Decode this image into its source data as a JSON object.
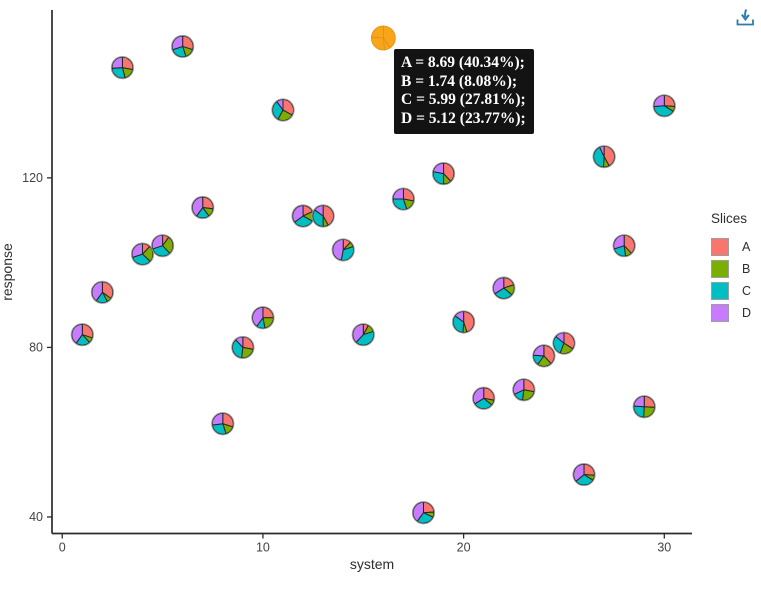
{
  "icons": {
    "download": "download-icon"
  },
  "tooltip": {
    "lines": [
      "A = 8.69 (40.34%);",
      "B = 1.74 (8.08%);",
      "C = 5.99 (27.81%);",
      "D = 5.12 (23.77%);"
    ],
    "point_x": 16
  },
  "chart_data": {
    "type": "scatter-pie",
    "title": "",
    "xlabel": "system",
    "ylabel": "response",
    "x_ticks": [
      0,
      10,
      20,
      30
    ],
    "y_ticks": [
      40,
      80,
      120
    ],
    "xlim": [
      -0.51,
      31.38
    ],
    "ylim": [
      36.1,
      159.6
    ],
    "grid": false,
    "legend": {
      "title": "Slices",
      "position": "right",
      "entries": [
        {
          "label": "A",
          "color": "#F8766D"
        },
        {
          "label": "B",
          "color": "#7CAE00"
        },
        {
          "label": "C",
          "color": "#00BFC4"
        },
        {
          "label": "D",
          "color": "#C77CFF"
        }
      ]
    },
    "highlight_color": "#F9A51B",
    "points": [
      {
        "x": 1,
        "y": 83,
        "slices": {
          "A": 30,
          "B": 8,
          "C": 22,
          "D": 40
        }
      },
      {
        "x": 2,
        "y": 93,
        "slices": {
          "A": 35,
          "B": 7,
          "C": 18,
          "D": 40
        }
      },
      {
        "x": 3,
        "y": 146,
        "slices": {
          "A": 28,
          "B": 18,
          "C": 28,
          "D": 26
        }
      },
      {
        "x": 4,
        "y": 102,
        "slices": {
          "A": 12,
          "B": 25,
          "C": 33,
          "D": 30
        }
      },
      {
        "x": 5,
        "y": 104,
        "slices": {
          "A": 10,
          "B": 28,
          "C": 32,
          "D": 30
        }
      },
      {
        "x": 6,
        "y": 151,
        "slices": {
          "A": 30,
          "B": 15,
          "C": 25,
          "D": 30
        }
      },
      {
        "x": 7,
        "y": 113,
        "slices": {
          "A": 27,
          "B": 13,
          "C": 20,
          "D": 40
        }
      },
      {
        "x": 8,
        "y": 62,
        "slices": {
          "A": 30,
          "B": 15,
          "C": 28,
          "D": 27
        }
      },
      {
        "x": 9,
        "y": 80,
        "slices": {
          "A": 28,
          "B": 24,
          "C": 36,
          "D": 12
        }
      },
      {
        "x": 10,
        "y": 87,
        "slices": {
          "A": 25,
          "B": 22,
          "C": 13,
          "D": 40
        }
      },
      {
        "x": 11,
        "y": 136,
        "slices": {
          "A": 33,
          "B": 25,
          "C": 32,
          "D": 10
        }
      },
      {
        "x": 12,
        "y": 111,
        "slices": {
          "A": 18,
          "B": 15,
          "C": 32,
          "D": 35
        }
      },
      {
        "x": 13,
        "y": 111,
        "slices": {
          "A": 42,
          "B": 8,
          "C": 35,
          "D": 15
        }
      },
      {
        "x": 14,
        "y": 103,
        "slices": {
          "A": 12,
          "B": 8,
          "C": 33,
          "D": 47
        }
      },
      {
        "x": 15,
        "y": 83,
        "slices": {
          "A": 8,
          "B": 12,
          "C": 42,
          "D": 38
        }
      },
      {
        "x": 16,
        "y": 153,
        "slices": {
          "A": 40.34,
          "B": 8.08,
          "C": 27.81,
          "D": 23.77
        },
        "highlight": true
      },
      {
        "x": 17,
        "y": 115,
        "slices": {
          "A": 28,
          "B": 17,
          "C": 30,
          "D": 25
        }
      },
      {
        "x": 18,
        "y": 41,
        "slices": {
          "A": 24,
          "B": 8,
          "C": 28,
          "D": 40
        }
      },
      {
        "x": 19,
        "y": 121,
        "slices": {
          "A": 38,
          "B": 12,
          "C": 28,
          "D": 22
        }
      },
      {
        "x": 20,
        "y": 86,
        "slices": {
          "A": 45,
          "B": 6,
          "C": 34,
          "D": 15
        }
      },
      {
        "x": 21,
        "y": 68,
        "slices": {
          "A": 28,
          "B": 8,
          "C": 30,
          "D": 34
        }
      },
      {
        "x": 22,
        "y": 94,
        "slices": {
          "A": 20,
          "B": 16,
          "C": 30,
          "D": 34
        }
      },
      {
        "x": 23,
        "y": 70,
        "slices": {
          "A": 28,
          "B": 24,
          "C": 16,
          "D": 32
        }
      },
      {
        "x": 24,
        "y": 78,
        "slices": {
          "A": 38,
          "B": 22,
          "C": 16,
          "D": 24
        }
      },
      {
        "x": 25,
        "y": 81,
        "slices": {
          "A": 34,
          "B": 22,
          "C": 30,
          "D": 14
        }
      },
      {
        "x": 26,
        "y": 50,
        "slices": {
          "A": 26,
          "B": 8,
          "C": 30,
          "D": 36
        }
      },
      {
        "x": 27,
        "y": 125,
        "slices": {
          "A": 42,
          "B": 9,
          "C": 42,
          "D": 7
        }
      },
      {
        "x": 28,
        "y": 104,
        "slices": {
          "A": 38,
          "B": 10,
          "C": 22,
          "D": 30
        }
      },
      {
        "x": 29,
        "y": 66,
        "slices": {
          "A": 26,
          "B": 25,
          "C": 25,
          "D": 24
        }
      },
      {
        "x": 30,
        "y": 137,
        "slices": {
          "A": 26,
          "B": 8,
          "C": 40,
          "D": 26
        }
      }
    ]
  }
}
